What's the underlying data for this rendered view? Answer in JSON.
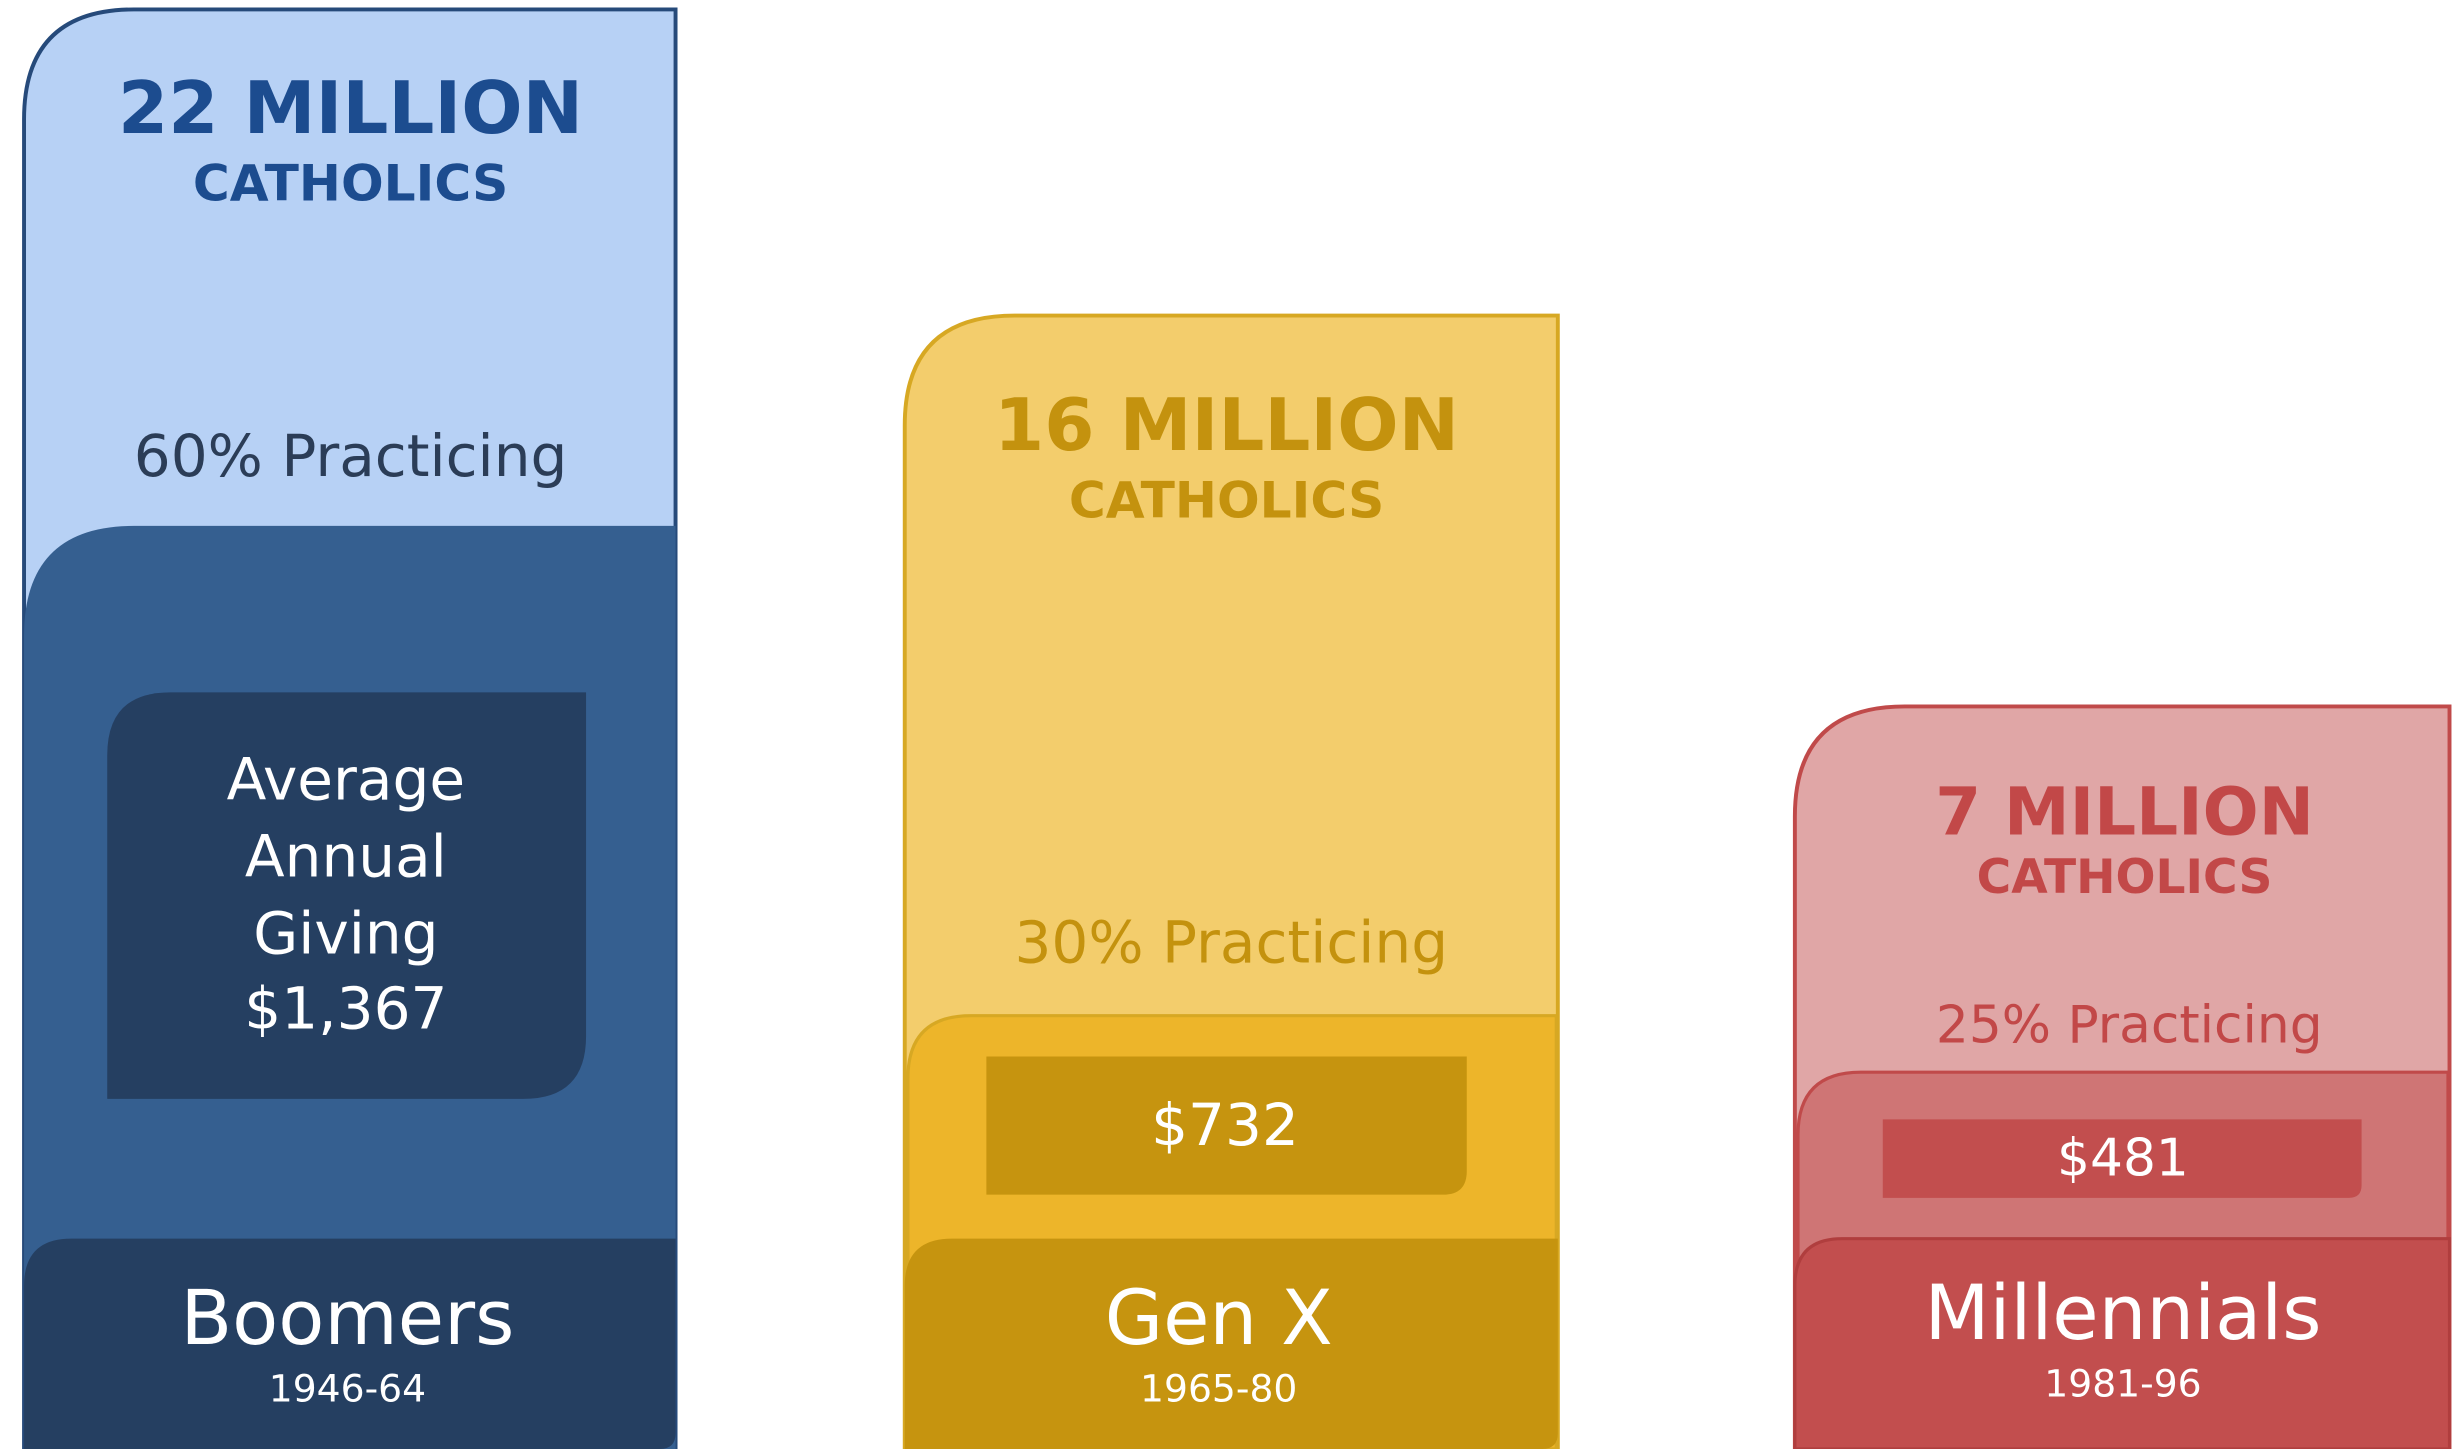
{
  "columns": [
    {
      "headline": "22 MILLION",
      "subheading": "CATHOLICS",
      "practicing": "60% Practicing",
      "giving_label": [
        "Average",
        "Annual",
        "Giving"
      ],
      "giving": "$1,367",
      "generation": "Boomers",
      "years": "1946-64"
    },
    {
      "headline": "16 MILLION",
      "subheading": "CATHOLICS",
      "practicing": "30% Practicing",
      "giving": "$732",
      "generation": "Gen X",
      "years": "1965-80"
    },
    {
      "headline": "7 MILLION",
      "subheading": "CATHOLICS",
      "practicing": "25% Practicing",
      "giving": "$481",
      "generation": "Millennials",
      "years": "1981-96"
    }
  ]
}
